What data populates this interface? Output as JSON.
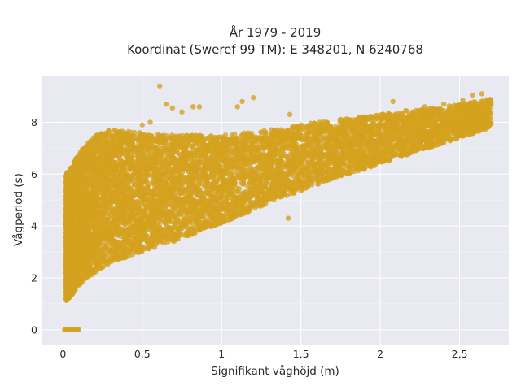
{
  "chart_data": {
    "type": "scatter",
    "title_lines": [
      "År 1979 - 2019",
      "Koordinat (Sweref 99 TM): E 348201, N 6240768"
    ],
    "xlabel": "Signifikant våghöjd (m)",
    "ylabel": "Vågperiod (s)",
    "xlim": [
      -0.13,
      2.81
    ],
    "ylim": [
      -0.6,
      9.8
    ],
    "x_ticks": [
      0,
      0.5,
      1,
      1.5,
      2,
      2.5
    ],
    "x_tick_labels": [
      "0",
      "0,5",
      "1",
      "1,5",
      "2",
      "2,5"
    ],
    "y_ticks": [
      0,
      2,
      4,
      6,
      8
    ],
    "y_tick_labels": [
      "0",
      "2",
      "4",
      "6",
      "8"
    ],
    "grid": true,
    "background": "#e9e9f2",
    "point_color": "#d4a21f",
    "envelope": {
      "x": [
        0.02,
        0.05,
        0.1,
        0.2,
        0.3,
        0.5,
        0.7,
        1.0,
        1.3,
        1.6,
        2.0,
        2.4,
        2.7
      ],
      "y_min": [
        1.1,
        1.3,
        1.7,
        2.2,
        2.6,
        3.0,
        3.4,
        4.1,
        4.9,
        5.6,
        6.4,
        7.2,
        7.8
      ],
      "y_max": [
        6.0,
        6.3,
        6.8,
        7.5,
        7.7,
        7.6,
        7.5,
        7.5,
        7.7,
        8.0,
        8.3,
        8.6,
        8.9
      ]
    },
    "calm_points": {
      "x": [
        0.01,
        0.02,
        0.03,
        0.04,
        0.05,
        0.06,
        0.07,
        0.08,
        0.09,
        0.1
      ],
      "y": [
        0,
        0,
        0,
        0,
        0,
        0,
        0,
        0,
        0,
        0
      ]
    },
    "outlier_points": {
      "x": [
        0.61,
        0.65,
        0.69,
        0.75,
        0.82,
        0.86,
        1.1,
        1.13,
        1.2,
        1.43,
        1.55,
        1.62,
        1.78,
        1.82,
        2.01,
        2.08,
        2.16,
        2.28,
        2.4,
        2.52,
        2.58,
        2.64,
        2.68,
        1.42,
        0.55,
        0.5
      ],
      "y": [
        9.4,
        8.7,
        8.55,
        8.4,
        8.6,
        8.6,
        8.6,
        8.8,
        8.95,
        8.3,
        6.3,
        6.5,
        6.6,
        6.5,
        8.3,
        8.8,
        8.45,
        8.6,
        8.7,
        8.85,
        9.05,
        9.1,
        8.8,
        4.3,
        8.0,
        7.9
      ]
    }
  }
}
